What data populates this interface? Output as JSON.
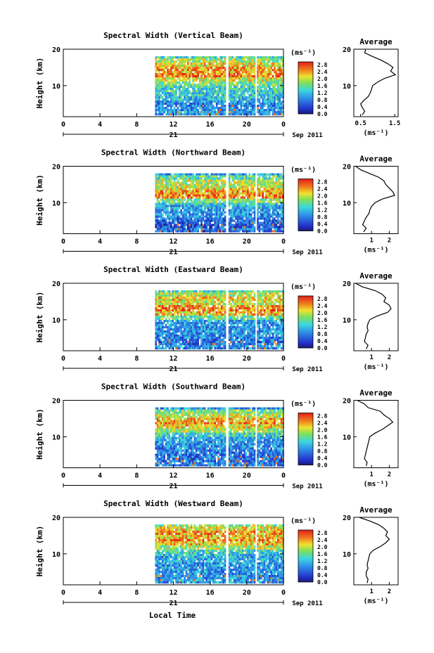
{
  "figure": {
    "xlabel": "Local Time"
  },
  "chart_data": [
    {
      "type": "heatmap",
      "title": "Spectral Width (Vertical Beam)",
      "xlabel": "",
      "ylabel": "Height (km)",
      "x_ticks": [
        "0",
        "4",
        "8",
        "12",
        "16",
        "20",
        "0"
      ],
      "y_ticks": [
        "20",
        "10"
      ],
      "xlim": [
        0,
        24
      ],
      "ylim": [
        1.5,
        20
      ],
      "date_label": "21",
      "month_label": "Sep 2011",
      "colorbar_unit": "(ms⁻¹)",
      "colorbar_ticks": [
        "2.8",
        "2.4",
        "2.0",
        "1.6",
        "1.2",
        "0.8",
        "0.4",
        "0.0"
      ],
      "colorbar_range": [
        0.0,
        2.8
      ],
      "data_coverage_local_time": [
        [
          10,
          17.6
        ],
        [
          18,
          20.8
        ],
        [
          21.1,
          24
        ]
      ],
      "average_profile": {
        "title": "Average",
        "xlabel": "(ms⁻¹)",
        "x_ticks": [
          "0.5",
          "1.5"
        ],
        "y_ticks": [
          "20",
          "10"
        ],
        "xlim": [
          0.3,
          1.6
        ],
        "height_km": [
          20,
          19,
          18,
          17,
          16,
          15,
          14,
          13,
          12,
          11,
          10,
          9,
          8,
          7,
          6,
          5,
          4,
          3,
          2
        ],
        "values": [
          0.65,
          0.62,
          0.85,
          1.1,
          1.3,
          1.45,
          1.38,
          1.52,
          1.2,
          1.0,
          0.85,
          0.82,
          0.78,
          0.72,
          0.6,
          0.5,
          0.55,
          0.62,
          0.55
        ]
      }
    },
    {
      "type": "heatmap",
      "title": "Spectral Width (Northward Beam)",
      "xlabel": "",
      "ylabel": "Height (km)",
      "x_ticks": [
        "0",
        "4",
        "8",
        "12",
        "16",
        "20",
        "0"
      ],
      "y_ticks": [
        "20",
        "10"
      ],
      "xlim": [
        0,
        24
      ],
      "ylim": [
        1.5,
        20
      ],
      "date_label": "21",
      "month_label": "Sep 2011",
      "colorbar_unit": "(ms⁻¹)",
      "colorbar_ticks": [
        "2.8",
        "2.4",
        "2.0",
        "1.6",
        "1.2",
        "0.8",
        "0.4",
        "0.0"
      ],
      "colorbar_range": [
        0.0,
        2.8
      ],
      "data_coverage_local_time": [
        [
          10,
          17.6
        ],
        [
          18,
          20.8
        ],
        [
          21.1,
          24
        ]
      ],
      "average_profile": {
        "title": "Average",
        "xlabel": "(ms⁻¹)",
        "x_ticks": [
          "1",
          "2"
        ],
        "y_ticks": [
          "20",
          "10"
        ],
        "xlim": [
          0,
          2.5
        ],
        "height_km": [
          20,
          19,
          18,
          17,
          16,
          15,
          14,
          13,
          12,
          11,
          10,
          9,
          8,
          7,
          6,
          5,
          4,
          3,
          2
        ],
        "values": [
          0.1,
          0.4,
          0.9,
          1.4,
          1.7,
          1.8,
          2.0,
          2.2,
          2.3,
          1.6,
          1.2,
          1.0,
          0.9,
          0.85,
          0.7,
          0.6,
          0.5,
          0.7,
          0.55
        ]
      }
    },
    {
      "type": "heatmap",
      "title": "Spectral Width (Eastward Beam)",
      "xlabel": "",
      "ylabel": "Height (km)",
      "x_ticks": [
        "0",
        "4",
        "8",
        "12",
        "16",
        "20",
        "0"
      ],
      "y_ticks": [
        "20",
        "10"
      ],
      "xlim": [
        0,
        24
      ],
      "ylim": [
        1.5,
        20
      ],
      "date_label": "21",
      "month_label": "Sep 2011",
      "colorbar_unit": "(ms⁻¹)",
      "colorbar_ticks": [
        "2.8",
        "2.4",
        "2.0",
        "1.6",
        "1.2",
        "0.8",
        "0.4",
        "0.0"
      ],
      "colorbar_range": [
        0.0,
        2.8
      ],
      "data_coverage_local_time": [
        [
          10,
          17.6
        ],
        [
          18,
          20.8
        ],
        [
          21.1,
          24
        ]
      ],
      "average_profile": {
        "title": "Average",
        "xlabel": "(ms⁻¹)",
        "x_ticks": [
          "1",
          "2"
        ],
        "y_ticks": [
          "20",
          "10"
        ],
        "xlim": [
          0,
          2.5
        ],
        "height_km": [
          20,
          19,
          18,
          17,
          16,
          15,
          14,
          13,
          12,
          11,
          10,
          9,
          8,
          7,
          6,
          5,
          4,
          3,
          2
        ],
        "values": [
          0.1,
          0.5,
          1.2,
          1.6,
          1.8,
          1.7,
          2.0,
          2.1,
          1.9,
          1.3,
          0.9,
          0.8,
          0.75,
          0.8,
          0.7,
          0.65,
          0.6,
          0.8,
          0.7
        ]
      }
    },
    {
      "type": "heatmap",
      "title": "Spectral Width (Southward Beam)",
      "xlabel": "",
      "ylabel": "Height (km)",
      "x_ticks": [
        "0",
        "4",
        "8",
        "12",
        "16",
        "20",
        "0"
      ],
      "y_ticks": [
        "20",
        "10"
      ],
      "xlim": [
        0,
        24
      ],
      "ylim": [
        1.5,
        20
      ],
      "date_label": "21",
      "month_label": "Sep 2011",
      "colorbar_unit": "(ms⁻¹)",
      "colorbar_ticks": [
        "2.8",
        "2.4",
        "2.0",
        "1.6",
        "1.2",
        "0.8",
        "0.4",
        "0.0"
      ],
      "colorbar_range": [
        0.0,
        2.8
      ],
      "data_coverage_local_time": [
        [
          10,
          17.6
        ],
        [
          18,
          20.8
        ],
        [
          21.1,
          24
        ]
      ],
      "average_profile": {
        "title": "Average",
        "xlabel": "(ms⁻¹)",
        "x_ticks": [
          "1",
          "2"
        ],
        "y_ticks": [
          "20",
          "10"
        ],
        "xlim": [
          0,
          2.5
        ],
        "height_km": [
          20,
          19,
          18,
          17,
          16,
          15,
          14,
          13,
          12,
          11,
          10,
          9,
          8,
          7,
          6,
          5,
          4,
          3,
          2
        ],
        "values": [
          0.2,
          0.6,
          0.8,
          1.5,
          1.7,
          2.0,
          2.2,
          1.9,
          1.6,
          1.2,
          0.9,
          0.85,
          0.8,
          0.75,
          0.7,
          0.65,
          0.6,
          0.75,
          0.7
        ]
      }
    },
    {
      "type": "heatmap",
      "title": "Spectral Width (Westward Beam)",
      "xlabel": "",
      "ylabel": "Height (km)",
      "x_ticks": [
        "0",
        "4",
        "8",
        "12",
        "16",
        "20",
        "0"
      ],
      "y_ticks": [
        "20",
        "10"
      ],
      "xlim": [
        0,
        24
      ],
      "ylim": [
        1.5,
        20
      ],
      "date_label": "21",
      "month_label": "Sep 2011",
      "colorbar_unit": "(ms⁻¹)",
      "colorbar_ticks": [
        "2.8",
        "2.4",
        "2.0",
        "1.6",
        "1.2",
        "0.8",
        "0.4",
        "0.0"
      ],
      "colorbar_range": [
        0.0,
        2.8
      ],
      "data_coverage_local_time": [
        [
          10,
          17.6
        ],
        [
          18,
          20.8
        ],
        [
          21.1,
          24
        ]
      ],
      "average_profile": {
        "title": "Average",
        "xlabel": "(ms⁻¹)",
        "x_ticks": [
          "1",
          "2"
        ],
        "y_ticks": [
          "20",
          "10"
        ],
        "xlim": [
          0,
          2.5
        ],
        "height_km": [
          20,
          19,
          18,
          17,
          16,
          15,
          14,
          13,
          12,
          11,
          10,
          9,
          8,
          7,
          6,
          5,
          4,
          3,
          2
        ],
        "values": [
          0.3,
          0.9,
          1.4,
          1.7,
          1.9,
          1.8,
          2.0,
          1.8,
          1.5,
          1.1,
          0.9,
          0.85,
          0.8,
          0.75,
          0.8,
          0.7,
          0.7,
          0.8,
          0.75
        ]
      }
    }
  ]
}
